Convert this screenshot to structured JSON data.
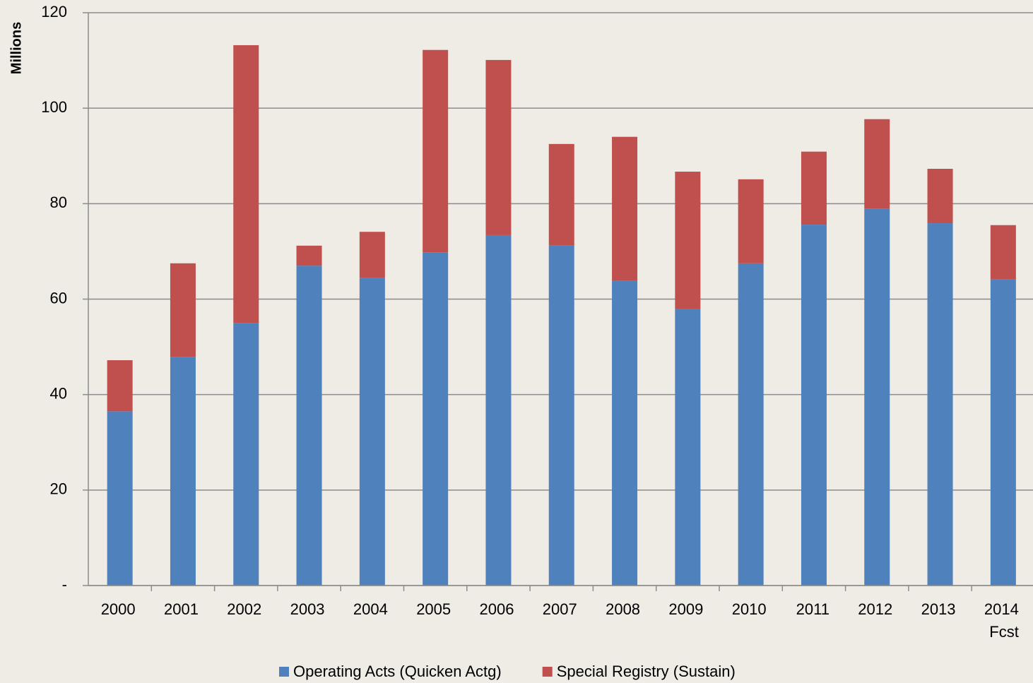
{
  "chart_data": {
    "type": "stacked_bar",
    "y_label": "Millions",
    "categories": [
      "2000",
      "2001",
      "2002",
      "2003",
      "2004",
      "2005",
      "2006",
      "2007",
      "2008",
      "2009",
      "2010",
      "2011",
      "2012",
      "2013",
      "2014\nFcst"
    ],
    "series": [
      {
        "name": "Operating Acts (Quicken Actg)",
        "color": "#4f81bd",
        "values": [
          36.5,
          47.9,
          55.0,
          67.0,
          64.5,
          69.8,
          73.4,
          71.2,
          63.8,
          58.0,
          67.5,
          75.6,
          78.9,
          75.9,
          64.1
        ]
      },
      {
        "name": "Special Registry (Sustain)",
        "color": "#c0504d",
        "values": [
          10.7,
          19.6,
          58.2,
          4.2,
          9.6,
          42.4,
          36.7,
          21.3,
          30.2,
          28.7,
          17.6,
          15.3,
          18.8,
          11.4,
          11.4
        ]
      }
    ],
    "ylim": [
      0,
      120
    ],
    "yticks": [
      {
        "value": 0,
        "label": "-"
      },
      20,
      40,
      60,
      80,
      100,
      120
    ],
    "grid": true,
    "legend": "bottom"
  }
}
